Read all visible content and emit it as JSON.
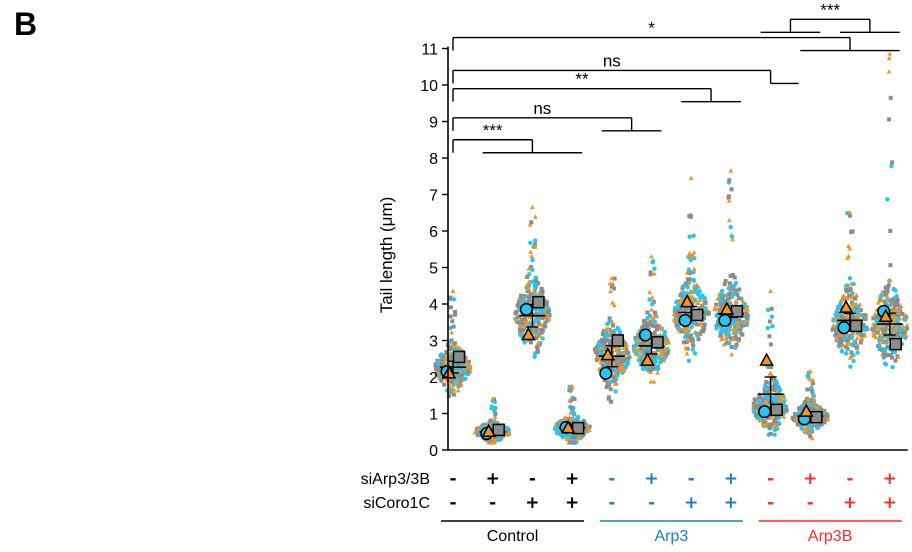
{
  "panel_letter": "B",
  "colors": {
    "gray": "#8c8c8c",
    "cyan": "#29c4f0",
    "orange": "#f7941d",
    "black": "#000000",
    "arp3_blue": "#1a7fc1",
    "arp3b_red": "#ff2a2a"
  },
  "chart_data": {
    "type": "scatter",
    "ylabel": "Tail length (μm)",
    "ylim": [
      0,
      11
    ],
    "yticks": [
      0,
      1,
      2,
      3,
      4,
      5,
      6,
      7,
      8,
      9,
      10,
      11
    ],
    "x": [
      1,
      2,
      3,
      4,
      5,
      6,
      7,
      8,
      9,
      10,
      11,
      12
    ],
    "rows": [
      {
        "label": "siArp3/3B",
        "values": [
          "-",
          "+",
          "-",
          "+",
          "-",
          "+",
          "-",
          "+",
          "-",
          "+",
          "-",
          "+"
        ]
      },
      {
        "label": "siCoro1C",
        "values": [
          "-",
          "-",
          "+",
          "+",
          "-",
          "-",
          "+",
          "+",
          "-",
          "-",
          "+",
          "+"
        ]
      }
    ],
    "groups": [
      {
        "label": "Control",
        "x_from": 1,
        "x_to": 4,
        "color": "#000000"
      },
      {
        "label": "Arp3",
        "x_from": 5,
        "x_to": 8,
        "color": "#1a7fc1"
      },
      {
        "label": "Arp3B",
        "x_from": 9,
        "x_to": 12,
        "color": "#ff2a2a"
      }
    ],
    "series": [
      {
        "marker": "square",
        "color": "#8c8c8c",
        "values": [
          2.55,
          0.55,
          4.05,
          0.6,
          3.0,
          2.95,
          3.7,
          3.8,
          1.1,
          0.9,
          3.4,
          2.9
        ]
      },
      {
        "marker": "circle",
        "color": "#29c4f0",
        "values": [
          2.15,
          0.45,
          3.85,
          0.62,
          2.1,
          3.15,
          3.55,
          3.55,
          1.05,
          0.85,
          3.35,
          3.8
        ]
      },
      {
        "marker": "triangle",
        "color": "#f7941d",
        "values": [
          2.1,
          0.5,
          3.15,
          0.6,
          2.6,
          2.45,
          4.05,
          3.85,
          2.45,
          1.05,
          3.9,
          3.65
        ]
      }
    ],
    "mean": [
      2.27,
      0.5,
      3.68,
      0.61,
      2.57,
      2.85,
      3.77,
      3.73,
      1.53,
      0.93,
      3.55,
      3.45
    ],
    "sem": [
      0.16,
      0.04,
      0.31,
      0.01,
      0.29,
      0.22,
      0.16,
      0.1,
      0.47,
      0.06,
      0.19,
      0.3
    ],
    "dist": [
      {
        "center": 2.25,
        "min": 1.05,
        "max": 4.35,
        "spread": 0.55
      },
      {
        "center": 0.5,
        "min": 0.2,
        "max": 1.4,
        "spread": 0.22
      },
      {
        "center": 3.7,
        "min": 1.7,
        "max": 6.65,
        "spread": 0.85
      },
      {
        "center": 0.6,
        "min": 0.2,
        "max": 1.75,
        "spread": 0.3
      },
      {
        "center": 2.6,
        "min": 1.1,
        "max": 4.7,
        "spread": 0.7
      },
      {
        "center": 2.85,
        "min": 1.2,
        "max": 5.3,
        "spread": 0.7
      },
      {
        "center": 3.75,
        "min": 1.9,
        "max": 7.45,
        "spread": 0.8
      },
      {
        "center": 3.7,
        "min": 1.55,
        "max": 7.65,
        "spread": 0.8
      },
      {
        "center": 1.2,
        "min": 0.2,
        "max": 4.35,
        "spread": 0.6
      },
      {
        "center": 0.9,
        "min": 0.2,
        "max": 2.15,
        "spread": 0.35
      },
      {
        "center": 3.4,
        "min": 1.5,
        "max": 6.5,
        "spread": 0.8
      },
      {
        "center": 3.4,
        "min": 1.3,
        "max": 10.85,
        "spread": 0.95
      }
    ],
    "significance": [
      {
        "label": "***",
        "from": 1,
        "to": [
          2,
          4
        ],
        "y": 8.5
      },
      {
        "label": "ns",
        "from": 1,
        "to": [
          5,
          6
        ],
        "y": 9.1
      },
      {
        "label": "**",
        "from": 1,
        "to": [
          7,
          8
        ],
        "y": 9.9
      },
      {
        "label": "ns",
        "from": 1,
        "to": [
          9,
          9
        ],
        "y": 10.4
      },
      {
        "label": "*",
        "from": 1,
        "to": [
          10,
          12
        ],
        "y": 11.3
      },
      {
        "label": "***",
        "from": [
          9,
          10
        ],
        "to": [
          11,
          12
        ],
        "y": 11.8
      }
    ]
  }
}
